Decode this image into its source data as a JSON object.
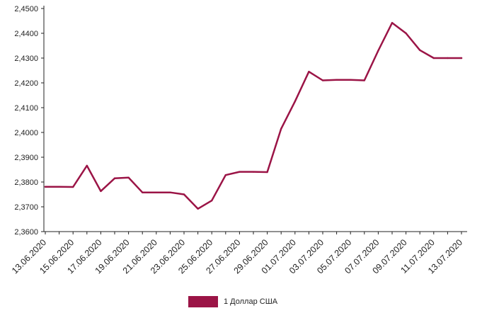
{
  "chart_data": {
    "type": "line",
    "title": "",
    "xlabel": "",
    "ylabel": "",
    "ylim": [
      2.36,
      2.45
    ],
    "yticks": [
      "2,3600",
      "2,3700",
      "2,3800",
      "2,3900",
      "2,4000",
      "2,4100",
      "2,4200",
      "2,4300",
      "2,4400",
      "2,4500"
    ],
    "x": [
      "13.06.2020",
      "14.06.2020",
      "15.06.2020",
      "16.06.2020",
      "17.06.2020",
      "18.06.2020",
      "19.06.2020",
      "20.06.2020",
      "21.06.2020",
      "22.06.2020",
      "23.06.2020",
      "24.06.2020",
      "25.06.2020",
      "26.06.2020",
      "27.06.2020",
      "28.06.2020",
      "29.06.2020",
      "30.06.2020",
      "01.07.2020",
      "02.07.2020",
      "03.07.2020",
      "04.07.2020",
      "05.07.2020",
      "06.07.2020",
      "07.07.2020",
      "08.07.2020",
      "09.07.2020",
      "10.07.2020",
      "11.07.2020",
      "12.07.2020",
      "13.07.2020"
    ],
    "xtick_labels": [
      "13.06.2020",
      "15.06.2020",
      "17.06.2020",
      "19.06.2020",
      "21.06.2020",
      "23.06.2020",
      "25.06.2020",
      "27.06.2020",
      "29.06.2020",
      "01.07.2020",
      "03.07.2020",
      "05.07.2020",
      "07.07.2020",
      "09.07.2020",
      "11.07.2020",
      "13.07.2020"
    ],
    "series": [
      {
        "name": "1 Доллар США",
        "color": "#9b1446",
        "values": [
          2.3781,
          2.3781,
          2.378,
          2.3866,
          2.3763,
          2.3815,
          2.3818,
          2.3758,
          2.3758,
          2.3758,
          2.375,
          2.3692,
          2.3725,
          2.3828,
          2.3841,
          2.3841,
          2.384,
          2.4015,
          2.4125,
          2.4245,
          2.421,
          2.4212,
          2.4212,
          2.421,
          2.433,
          2.4442,
          2.44,
          2.4332,
          2.43,
          2.43,
          2.43
        ]
      }
    ],
    "legend_position": "bottom",
    "grid": false
  }
}
